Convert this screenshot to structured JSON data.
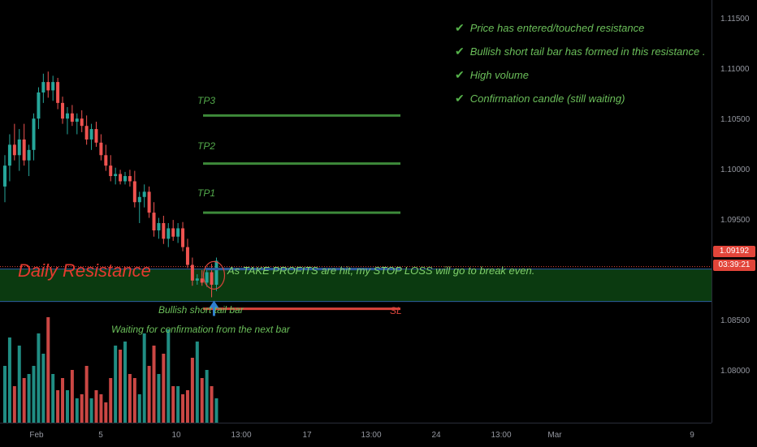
{
  "colors": {
    "background": "#000000",
    "bull": "#26a69a",
    "bear": "#ef5350",
    "tp_line": "#3d8a3a",
    "sl_line": "#d9443b",
    "resistance_zone": "#0b3a10",
    "resistance_border": "#2d5d9e",
    "text_green": "#6bbf5a",
    "text_red": "#e43a2f",
    "price_badge_red": "#e2453a"
  },
  "checklist": [
    {
      "icon": "check-icon",
      "label": "Price has entered/touched resistance"
    },
    {
      "icon": "check-icon",
      "label": "Bullish short tail bar has formed in this resistance ."
    },
    {
      "icon": "check-icon",
      "label": "High volume"
    },
    {
      "icon": "check-icon",
      "label": "Confirmation candle (still waiting)"
    }
  ],
  "targets": {
    "tp3": "TP3",
    "tp2": "TP2",
    "tp1": "TP1",
    "sl": "SL"
  },
  "resistance": {
    "title": "Daily Resistance",
    "note": "As TAKE PROFITS are hit, my STOP LOSS will go to break even."
  },
  "notes": {
    "bar_label": "Bullish short tail bar",
    "waiting": "Waiting for confirmation from the next bar"
  },
  "price_axis": {
    "ticks": [
      "1.11500",
      "1.11000",
      "1.10500",
      "1.10000",
      "1.09500",
      "1.08500",
      "1.08000"
    ],
    "current_price": "1.09192",
    "countdown": "03:39:21"
  },
  "time_axis": {
    "ticks": [
      "Feb",
      "5",
      "10",
      "13:00",
      "17",
      "13:00",
      "24",
      "13:00",
      "Mar",
      "9"
    ]
  },
  "chart_data": {
    "type": "candlestick",
    "series": [
      {
        "name": "",
        "candles": [
          [
            1.099,
            1.102,
            1.0975,
            1.101
          ],
          [
            1.101,
            1.104,
            1.0995,
            1.103
          ],
          [
            1.103,
            1.105,
            1.1015,
            1.102
          ],
          [
            1.102,
            1.1045,
            1.1005,
            1.1035
          ],
          [
            1.1035,
            1.105,
            1.101,
            1.1015
          ],
          [
            1.1015,
            1.103,
            1.1,
            1.1025
          ],
          [
            1.1025,
            1.106,
            1.1015,
            1.1055
          ],
          [
            1.1055,
            1.1085,
            1.1045,
            1.108
          ],
          [
            1.108,
            1.1098,
            1.107,
            1.109
          ],
          [
            1.109,
            1.11,
            1.1075,
            1.1082
          ],
          [
            1.1082,
            1.1096,
            1.1072,
            1.109
          ],
          [
            1.109,
            1.1094,
            1.1064,
            1.107
          ],
          [
            1.107,
            1.1076,
            1.105,
            1.1055
          ],
          [
            1.1055,
            1.1066,
            1.104,
            1.106
          ],
          [
            1.106,
            1.1068,
            1.1048,
            1.1052
          ],
          [
            1.1052,
            1.106,
            1.104,
            1.1055
          ],
          [
            1.1055,
            1.1063,
            1.1042,
            1.1048
          ],
          [
            1.1048,
            1.1058,
            1.103,
            1.1035
          ],
          [
            1.1035,
            1.105,
            1.1025,
            1.1045
          ],
          [
            1.1045,
            1.1052,
            1.1028,
            1.1032
          ],
          [
            1.1032,
            1.104,
            1.1015,
            1.102
          ],
          [
            1.102,
            1.103,
            1.1005,
            1.101
          ],
          [
            1.101,
            1.102,
            1.0995,
            1.1
          ],
          [
            1.1,
            1.1008,
            1.0992,
            1.1002
          ],
          [
            1.1002,
            1.1006,
            1.0992,
            1.0995
          ],
          [
            1.0995,
            1.1004,
            1.0992,
            1.1
          ],
          [
            1.1,
            1.1006,
            1.099,
            1.0995
          ],
          [
            1.0995,
            1.1005,
            1.097,
            1.0975
          ],
          [
            1.0975,
            1.0985,
            1.0955,
            1.098
          ],
          [
            1.098,
            1.0992,
            1.097,
            1.0985
          ],
          [
            1.0985,
            1.099,
            1.096,
            1.0965
          ],
          [
            1.0965,
            1.0975,
            1.0942,
            1.0948
          ],
          [
            1.0948,
            1.096,
            1.094,
            1.0955
          ],
          [
            1.0955,
            1.0962,
            1.0935,
            1.094
          ],
          [
            1.094,
            1.0955,
            1.0932,
            1.095
          ],
          [
            1.095,
            1.0958,
            1.0938,
            1.0942
          ],
          [
            1.0942,
            1.0955,
            1.0936,
            1.095
          ],
          [
            1.095,
            1.0956,
            1.0928,
            1.0932
          ],
          [
            1.0932,
            1.094,
            1.0912,
            1.0915
          ],
          [
            1.0915,
            1.0922,
            1.0895,
            1.09
          ],
          [
            1.09,
            1.0906,
            1.0896,
            1.0902
          ],
          [
            1.0902,
            1.091,
            1.0895,
            1.0898
          ],
          [
            1.0898,
            1.0912,
            1.0894,
            1.0908
          ],
          [
            1.0908,
            1.0916,
            1.0884,
            1.0896
          ],
          [
            1.0896,
            1.0922,
            1.089,
            1.0919
          ]
        ]
      }
    ],
    "volume": [
      70,
      105,
      45,
      95,
      55,
      60,
      70,
      110,
      85,
      130,
      60,
      40,
      55,
      40,
      65,
      30,
      35,
      70,
      30,
      40,
      35,
      25,
      55,
      95,
      90,
      100,
      60,
      55,
      35,
      110,
      70,
      95,
      60,
      85,
      115,
      45,
      45,
      35,
      40,
      80,
      100,
      55,
      65,
      45,
      30
    ],
    "resistance_zone": [
      1.088,
      1.0911
    ],
    "take_profits": {
      "TP3": 1.1058,
      "TP2": 1.1012,
      "TP1": 1.0965
    },
    "stop_loss": 1.0873,
    "entry": 1.0911,
    "ylim": [
      1.0764,
      1.11685
    ]
  }
}
